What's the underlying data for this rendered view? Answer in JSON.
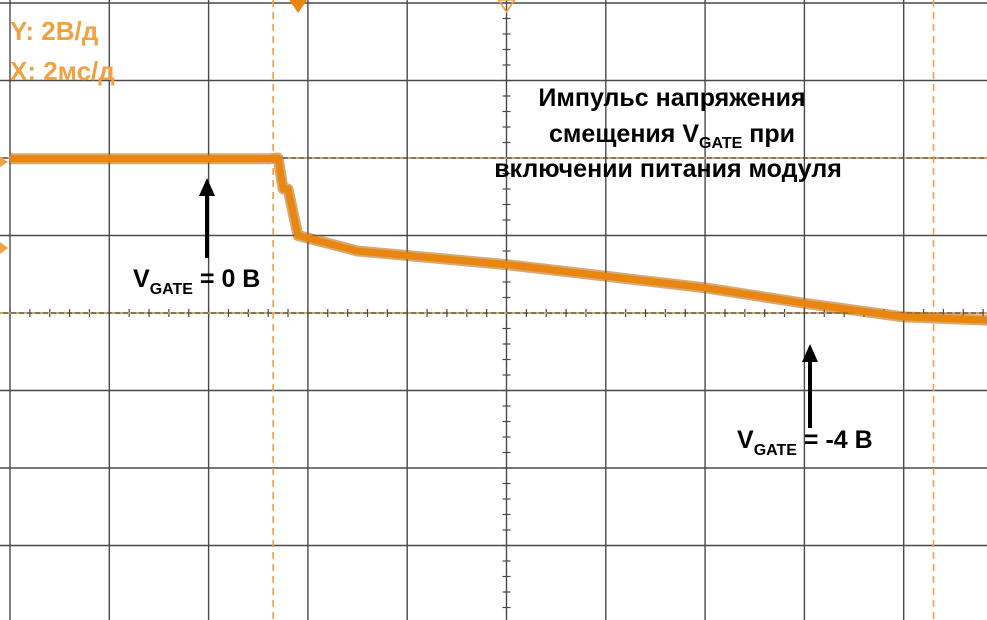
{
  "colors": {
    "trace": "#e8860f",
    "trace_dark": "#b86200",
    "grid": "#4a4a4a",
    "marker": "#f0a140",
    "text_scale": "#f0a140",
    "annotation": "#000000"
  },
  "scale": {
    "y_label": "Y: 2В/д",
    "x_label": "X: 2мс/д"
  },
  "annotations": {
    "title_line1": "Импульс напряжения",
    "title_line2_pre": "смещения V",
    "title_line2_sub": "GATE",
    "title_line2_post": " при",
    "title_line3": "включении питания модуля",
    "label0_v": "V",
    "label0_sub": "GATE",
    "label0_val": " = 0 В",
    "label1_v": "V",
    "label1_sub": "GATE",
    "label1_val": " = -4 В"
  },
  "chart_data": {
    "type": "line",
    "title": "",
    "xlabel": "",
    "ylabel": "",
    "x_unit": "div (2 мс/дел)",
    "y_unit": "В",
    "grid": true,
    "xlim": [
      0,
      10
    ],
    "ylim": [
      -8,
      8
    ],
    "series": [
      {
        "name": "",
        "x": [
          0.0,
          2.6,
          2.7,
          2.75,
          2.8,
          2.9,
          3.5,
          5.0,
          6.0,
          7.0,
          8.0,
          9.0,
          10.0
        ],
        "y": [
          3.98,
          3.98,
          4.0,
          3.2,
          3.2,
          2.0,
          1.6,
          1.25,
          0.95,
          0.65,
          0.25,
          -0.1,
          -0.2
        ]
      }
    ],
    "markers": {
      "cursor_x": [
        2.65,
        9.3
      ],
      "cursor_y": [
        4.0,
        0.0
      ]
    }
  }
}
